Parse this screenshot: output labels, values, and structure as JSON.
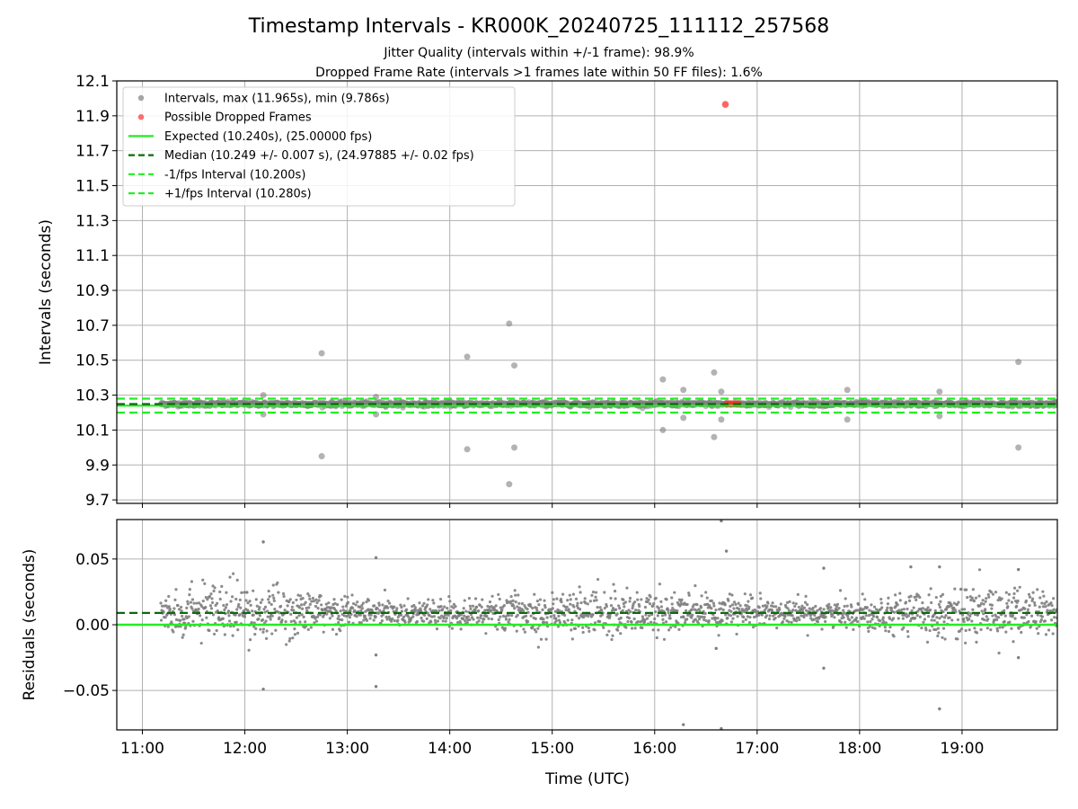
{
  "figure": {
    "title": "Timestamp Intervals - KR000K_20240725_111112_257568",
    "subtitle_1": "Jitter Quality (intervals within +/-1 frame): 98.9%",
    "subtitle_2": "Dropped Frame Rate (intervals >1 frames late within 50 FF files): 1.6%",
    "xlabel": "Time (UTC)"
  },
  "colors": {
    "intervals": "#808080",
    "dropped": "#ff3030",
    "expected": "#22ee22",
    "median": "#0a6b0a",
    "fps_bounds": "#22ee22",
    "grid": "#b0b0b0"
  },
  "chart_data": [
    {
      "type": "scatter",
      "ylabel": "Intervals (seconds)",
      "ylim": [
        9.68,
        12.1
      ],
      "xlim": [
        10.75,
        19.93
      ],
      "x_ticks": [
        11,
        12,
        13,
        14,
        15,
        16,
        17,
        18,
        19
      ],
      "x_tick_labels": [
        "11:00",
        "12:00",
        "13:00",
        "14:00",
        "15:00",
        "16:00",
        "17:00",
        "18:00",
        "19:00"
      ],
      "y_ticks": [
        9.7,
        9.9,
        10.1,
        10.3,
        10.5,
        10.7,
        10.9,
        11.1,
        11.3,
        11.5,
        11.7,
        11.9,
        12.1
      ],
      "y_tick_labels": [
        "9.7",
        "9.9",
        "10.1",
        "10.3",
        "10.5",
        "10.7",
        "10.9",
        "11.1",
        "11.3",
        "11.5",
        "11.7",
        "11.9",
        "12.1"
      ],
      "grid": true,
      "legend_position": "top-left",
      "legend": [
        {
          "label": "Intervals, max (11.965s), min (9.786s)",
          "marker": "dot",
          "color": "#808080"
        },
        {
          "label": "Possible Dropped Frames",
          "marker": "dot",
          "color": "#ff3030"
        },
        {
          "label": "Expected (10.240s), (25.00000 fps)",
          "marker": "line",
          "color": "#22ee22"
        },
        {
          "label": "Median (10.249 +/- 0.007 s), (24.97885 +/- 0.02 fps)",
          "marker": "dash",
          "color": "#0a6b0a"
        },
        {
          "label": "-1/fps Interval (10.200s)",
          "marker": "dash",
          "color": "#22ee22"
        },
        {
          "label": "+1/fps Interval (10.280s)",
          "marker": "dash",
          "color": "#22ee22"
        }
      ],
      "reference_lines": {
        "expected": 10.24,
        "median": 10.249,
        "minus_1_fps": 10.2,
        "plus_1_fps": 10.28
      },
      "dense_band": {
        "x_start": 11.18,
        "x_end": 19.93,
        "center": 10.249,
        "spread": 0.012
      },
      "intervals_outliers": [
        {
          "x": 12.18,
          "y": 10.3
        },
        {
          "x": 12.18,
          "y": 10.19
        },
        {
          "x": 12.75,
          "y": 10.54
        },
        {
          "x": 12.75,
          "y": 9.95
        },
        {
          "x": 13.28,
          "y": 10.29
        },
        {
          "x": 13.28,
          "y": 10.19
        },
        {
          "x": 14.17,
          "y": 10.52
        },
        {
          "x": 14.17,
          "y": 9.99
        },
        {
          "x": 14.58,
          "y": 10.71
        },
        {
          "x": 14.58,
          "y": 9.79
        },
        {
          "x": 14.63,
          "y": 10.47
        },
        {
          "x": 14.63,
          "y": 10.0
        },
        {
          "x": 16.08,
          "y": 10.39
        },
        {
          "x": 16.08,
          "y": 10.1
        },
        {
          "x": 16.28,
          "y": 10.33
        },
        {
          "x": 16.28,
          "y": 10.17
        },
        {
          "x": 16.58,
          "y": 10.43
        },
        {
          "x": 16.58,
          "y": 10.06
        },
        {
          "x": 16.65,
          "y": 10.32
        },
        {
          "x": 16.65,
          "y": 10.16
        },
        {
          "x": 17.88,
          "y": 10.33
        },
        {
          "x": 17.88,
          "y": 10.16
        },
        {
          "x": 18.78,
          "y": 10.32
        },
        {
          "x": 18.78,
          "y": 10.18
        },
        {
          "x": 19.55,
          "y": 10.49
        },
        {
          "x": 19.55,
          "y": 10.0
        }
      ],
      "dropped_frames": [
        {
          "x": 16.69,
          "y": 11.965
        },
        {
          "x": 16.7,
          "y": 10.25
        },
        {
          "x": 16.72,
          "y": 10.25
        },
        {
          "x": 16.74,
          "y": 10.25
        },
        {
          "x": 16.76,
          "y": 10.25
        },
        {
          "x": 16.78,
          "y": 10.25
        },
        {
          "x": 16.8,
          "y": 10.25
        },
        {
          "x": 16.82,
          "y": 10.25
        }
      ]
    },
    {
      "type": "scatter",
      "ylabel": "Residuals (seconds)",
      "ylim": [
        -0.08,
        0.08
      ],
      "xlim": [
        10.75,
        19.93
      ],
      "y_ticks": [
        -0.05,
        0.0,
        0.05
      ],
      "y_tick_labels": [
        "−0.05",
        "0.00",
        "0.05"
      ],
      "grid": true,
      "reference_lines": {
        "expected": 0.0,
        "median": 0.009
      },
      "dense_band": {
        "x_start": 11.18,
        "x_end": 19.93,
        "center": 0.009,
        "spread": 0.012
      },
      "residual_outliers": [
        {
          "x": 12.18,
          "y": 0.063
        },
        {
          "x": 12.18,
          "y": -0.049
        },
        {
          "x": 13.28,
          "y": 0.051
        },
        {
          "x": 13.28,
          "y": -0.047
        },
        {
          "x": 13.28,
          "y": -0.023
        },
        {
          "x": 16.28,
          "y": -0.076
        },
        {
          "x": 16.65,
          "y": 0.079
        },
        {
          "x": 16.65,
          "y": -0.079
        },
        {
          "x": 16.7,
          "y": 0.056
        },
        {
          "x": 16.6,
          "y": -0.018
        },
        {
          "x": 17.65,
          "y": -0.033
        },
        {
          "x": 17.65,
          "y": 0.043
        },
        {
          "x": 18.78,
          "y": -0.064
        },
        {
          "x": 18.78,
          "y": 0.044
        },
        {
          "x": 18.5,
          "y": 0.044
        },
        {
          "x": 19.55,
          "y": 0.042
        },
        {
          "x": 19.55,
          "y": -0.025
        }
      ]
    }
  ]
}
